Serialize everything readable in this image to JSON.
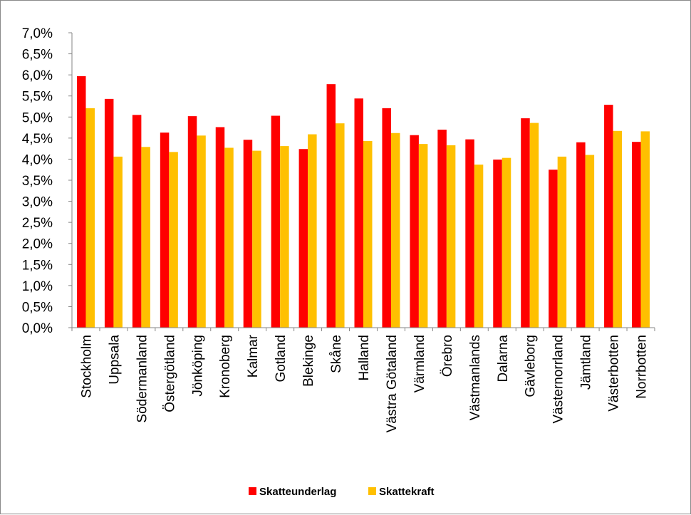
{
  "chart_data": {
    "type": "bar",
    "categories": [
      "Stockholm",
      "Uppsala",
      "Södermanland",
      "Östergötland",
      "Jönköping",
      "Kronoberg",
      "Kalmar",
      "Gotland",
      "Blekinge",
      "Skåne",
      "Halland",
      "Västra Götaland",
      "Värmland",
      "Örebro",
      "Västmanlands",
      "Dalarna",
      "Gävleborg",
      "Västernorrland",
      "Jämtland",
      "Västerbotten",
      "Norrbotten"
    ],
    "series": [
      {
        "name": "Skatteunderlag",
        "color": "#ff0000",
        "values": [
          5.97,
          5.43,
          5.05,
          4.63,
          5.02,
          4.76,
          4.46,
          5.03,
          4.24,
          5.78,
          5.44,
          5.21,
          4.57,
          4.7,
          4.47,
          3.99,
          4.97,
          3.75,
          4.4,
          5.29,
          4.41
        ]
      },
      {
        "name": "Skattekraft",
        "color": "#ffc000",
        "values": [
          5.21,
          4.06,
          4.29,
          4.17,
          4.56,
          4.27,
          4.2,
          4.31,
          4.59,
          4.85,
          4.43,
          4.62,
          4.36,
          4.33,
          3.87,
          4.03,
          4.86,
          4.06,
          4.1,
          4.67,
          4.66
        ]
      }
    ],
    "yticks": [
      "0,0%",
      "0,5%",
      "1,0%",
      "1,5%",
      "2,0%",
      "2,5%",
      "3,0%",
      "3,5%",
      "4,0%",
      "4,5%",
      "5,0%",
      "5,5%",
      "6,0%",
      "6,5%",
      "7,0%"
    ],
    "ylim": [
      0,
      7
    ],
    "ystep": 0.5,
    "grid": false,
    "legend_position": "bottom"
  }
}
